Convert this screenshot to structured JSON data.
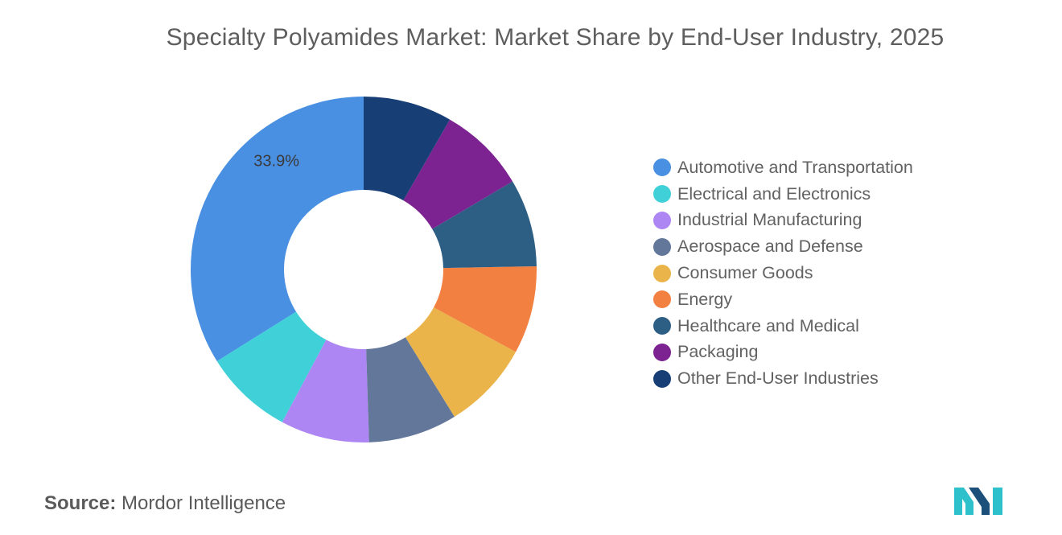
{
  "chart_data": {
    "type": "pie",
    "title": "Specialty Polyamides Market: Market Share by End-User Industry, 2025",
    "donut": true,
    "categories": [
      "Automotive and Transportation",
      "Electrical and Electronics",
      "Industrial Manufacturing",
      "Aerospace and Defense",
      "Consumer Goods",
      "Energy",
      "Healthcare and Medical",
      "Packaging",
      "Other End-User Industries"
    ],
    "values": [
      33.9,
      8.3,
      8.3,
      8.3,
      8.3,
      8.2,
      8.2,
      8.2,
      8.3
    ],
    "value_labels": [
      "33.9%",
      "",
      "",
      "",
      "",
      "",
      "",
      "",
      ""
    ],
    "colors": [
      "#4a90e2",
      "#3fd0d8",
      "#ae86f4",
      "#63779a",
      "#ebb44a",
      "#f28040",
      "#2d5f85",
      "#7c2291",
      "#173f75"
    ],
    "legend_position": "right",
    "grid": false
  },
  "source": {
    "label": "Source:",
    "text": "Mordor Intelligence"
  },
  "logo": {
    "colors": [
      "#2ec1cc",
      "#1c4f7a"
    ]
  }
}
